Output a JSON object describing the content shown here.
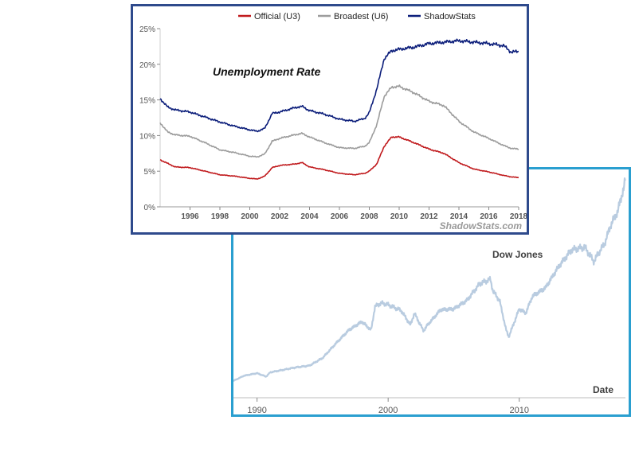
{
  "chart_data": [
    {
      "type": "line",
      "title": "Unemployment Rate",
      "watermark": "ShadowStats.com",
      "xlabel": "",
      "ylabel": "",
      "xlim": [
        1994,
        2018
      ],
      "ylim": [
        0,
        25
      ],
      "yticks": [
        {
          "value": 0,
          "label": "0%"
        },
        {
          "value": 5,
          "label": "5%"
        },
        {
          "value": 10,
          "label": "10%"
        },
        {
          "value": 15,
          "label": "15%"
        },
        {
          "value": 20,
          "label": "20%"
        },
        {
          "value": 25,
          "label": "25%"
        }
      ],
      "xticks": [
        {
          "value": 1996,
          "label": "1996"
        },
        {
          "value": 1998,
          "label": "1998"
        },
        {
          "value": 2000,
          "label": "2000"
        },
        {
          "value": 2002,
          "label": "2002"
        },
        {
          "value": 2004,
          "label": "2004"
        },
        {
          "value": 2006,
          "label": "2006"
        },
        {
          "value": 2008,
          "label": "2008"
        },
        {
          "value": 2010,
          "label": "2010"
        },
        {
          "value": 2012,
          "label": "2012"
        },
        {
          "value": 2014,
          "label": "2014"
        },
        {
          "value": 2016,
          "label": "2016"
        },
        {
          "value": 2018,
          "label": "2018"
        }
      ],
      "legend_position": "top",
      "series": [
        {
          "name": "Official (U3)",
          "color": "#c0191c",
          "x": [
            1994,
            1994.5,
            1995,
            1996,
            1997,
            1998,
            1999,
            2000,
            2000.5,
            2001,
            2001.5,
            2002,
            2003,
            2003.5,
            2004,
            2005,
            2006,
            2007,
            2007.7,
            2008,
            2008.5,
            2009,
            2009.5,
            2010,
            2011,
            2012,
            2013,
            2014,
            2015,
            2016,
            2017,
            2017.5,
            2018
          ],
          "values": [
            6.6,
            6.1,
            5.6,
            5.5,
            5.0,
            4.5,
            4.3,
            4.0,
            3.9,
            4.3,
            5.5,
            5.8,
            6.0,
            6.2,
            5.6,
            5.2,
            4.7,
            4.5,
            4.7,
            5.0,
            6.0,
            8.5,
            9.8,
            9.8,
            9.0,
            8.1,
            7.5,
            6.2,
            5.3,
            4.9,
            4.4,
            4.2,
            4.1
          ]
        },
        {
          "name": "Broadest (U6)",
          "color": "#9c9c9c",
          "x": [
            1994,
            1994.5,
            1995,
            1996,
            1997,
            1998,
            1999,
            2000,
            2000.5,
            2001,
            2001.5,
            2002,
            2003,
            2003.5,
            2004,
            2005,
            2006,
            2007,
            2007.7,
            2008,
            2008.5,
            2009,
            2009.5,
            2010,
            2011,
            2012,
            2013,
            2014,
            2015,
            2016,
            2017,
            2017.5,
            2018
          ],
          "values": [
            11.8,
            10.5,
            10.1,
            9.9,
            9.0,
            8.0,
            7.6,
            7.1,
            7.0,
            7.4,
            9.2,
            9.6,
            10.1,
            10.3,
            9.8,
            9.0,
            8.3,
            8.2,
            8.5,
            9.0,
            11.5,
            15.5,
            16.8,
            16.9,
            16.0,
            14.8,
            14.2,
            12.0,
            10.5,
            9.6,
            8.6,
            8.2,
            8.1
          ]
        },
        {
          "name": "ShadowStats",
          "color": "#0b1d7a",
          "x": [
            1994,
            1994.5,
            1995,
            1996,
            1997,
            1998,
            1999,
            2000,
            2000.5,
            2001,
            2001.5,
            2002,
            2003,
            2003.5,
            2004,
            2005,
            2006,
            2007,
            2007.7,
            2008,
            2008.5,
            2009,
            2009.5,
            2010,
            2011,
            2012,
            2013,
            2014,
            2015,
            2016,
            2017,
            2017.5,
            2018
          ],
          "values": [
            15.2,
            14.0,
            13.6,
            13.3,
            12.6,
            11.9,
            11.3,
            10.8,
            10.6,
            11.0,
            13.1,
            13.3,
            13.9,
            14.1,
            13.5,
            13.0,
            12.3,
            12.0,
            12.4,
            13.2,
            16.5,
            20.8,
            21.9,
            22.1,
            22.4,
            22.9,
            23.1,
            23.3,
            23.1,
            22.9,
            22.6,
            21.7,
            21.8
          ]
        }
      ]
    },
    {
      "type": "line",
      "title": "Dow Jones",
      "xlabel": "Date",
      "ylabel": "",
      "xlim": [
        1988.2,
        2018.1
      ],
      "ylim": [
        0,
        27000
      ],
      "grid": false,
      "xticks": [
        {
          "value": 1990,
          "label": "1990"
        },
        {
          "value": 2000,
          "label": "2000"
        },
        {
          "value": 2010,
          "label": "2010"
        }
      ],
      "series": [
        {
          "name": "Dow Jones",
          "color": "#b9cce0",
          "x": [
            1988.2,
            1989,
            1990,
            1990.7,
            1991,
            1992,
            1993,
            1994,
            1995,
            1996,
            1997,
            1998,
            1998.7,
            1999,
            1999.5,
            2000,
            2001,
            2001.7,
            2002,
            2002.7,
            2003,
            2004,
            2005,
            2006,
            2007,
            2007.8,
            2008,
            2008.5,
            2009,
            2009.2,
            2010,
            2010.5,
            2011,
            2012,
            2013,
            2014,
            2015,
            2015.7,
            2016,
            2016.5,
            2017,
            2017.5,
            2018,
            2018.1
          ],
          "values": [
            2000,
            2600,
            2900,
            2500,
            3000,
            3300,
            3600,
            3800,
            4700,
            6400,
            8000,
            9000,
            8000,
            10800,
            11200,
            11000,
            10300,
            8600,
            10000,
            7900,
            8600,
            10400,
            10500,
            11500,
            13500,
            14000,
            12600,
            11500,
            8000,
            7200,
            10500,
            10000,
            12000,
            13000,
            15500,
            17500,
            17800,
            16100,
            17000,
            18200,
            20500,
            22000,
            25000,
            26000
          ]
        }
      ]
    }
  ]
}
